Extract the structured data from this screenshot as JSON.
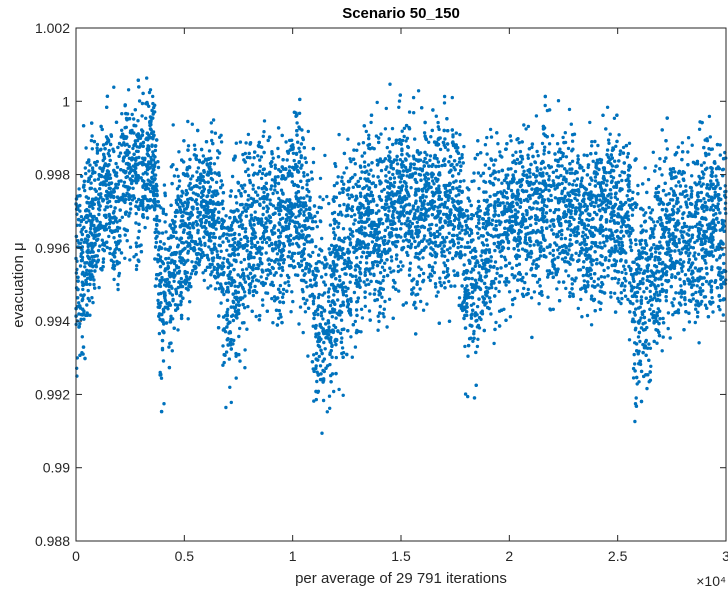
{
  "chart_data": {
    "type": "scatter",
    "title": "Scenario 50_150",
    "xlabel": "per average of 29 791 iterations",
    "ylabel": "evacuation μ",
    "xlim": [
      0,
      30000
    ],
    "ylim": [
      0.988,
      1.002
    ],
    "x_exponent_label": "×10⁴",
    "x_ticks": [
      0,
      5000,
      10000,
      15000,
      20000,
      25000,
      30000
    ],
    "x_tick_labels": [
      "0",
      "0.5",
      "1",
      "1.5",
      "2",
      "2.5",
      "3"
    ],
    "y_ticks": [
      0.988,
      0.99,
      0.992,
      0.994,
      0.996,
      0.998,
      1,
      1.002
    ],
    "y_tick_labels": [
      "0.988",
      "0.99",
      "0.992",
      "0.994",
      "0.996",
      "0.998",
      "1",
      "1.002"
    ],
    "grid": false,
    "marker_color": "#0072BD",
    "series": [
      {
        "x": [
          0,
          300,
          600,
          900,
          1200,
          1500,
          1800,
          2100,
          2400,
          2700,
          3000,
          3300,
          3600,
          3900,
          4200,
          4500,
          4800,
          5100,
          5400,
          5700,
          6000,
          6300,
          6600,
          6900,
          7200,
          7500,
          7800,
          8100,
          8400,
          8700,
          9000,
          9300,
          9600,
          9900,
          10200,
          10500,
          10800,
          11100,
          11400,
          11700,
          12000,
          12300,
          12600,
          12900,
          13200,
          13500,
          13800,
          14100,
          14400,
          14700,
          15000,
          15300,
          15600,
          15900,
          16200,
          16500,
          16800,
          17100,
          17400,
          17700,
          18000,
          18300,
          18600,
          18900,
          19200,
          19500,
          19800,
          20100,
          20400,
          20700,
          21000,
          21300,
          21600,
          21900,
          22200,
          22500,
          22800,
          23100,
          23400,
          23700,
          24000,
          24300,
          24600,
          24900,
          25200,
          25500,
          25800,
          26100,
          26400,
          26700,
          27000,
          27300,
          27600,
          27900,
          28200,
          28500,
          28800,
          29100,
          29400,
          29700,
          30000
        ],
        "y_max": [
          0.9995,
          0.9998,
          1.0,
          1.0002,
          1.0004,
          1.0006,
          1.0008,
          1.001,
          1.0011,
          1.001,
          1.0012,
          1.0013,
          1.0011,
          0.999,
          0.9992,
          0.9995,
          0.9997,
          0.9999,
          1.0,
          1.0002,
          1.0001,
          1.0003,
          1.0004,
          0.9995,
          0.9996,
          0.9998,
          0.9999,
          0.9998,
          1.0,
          1.0002,
          1.0003,
          1.0004,
          1.0005,
          1.0006,
          1.0006,
          1.0004,
          1.0002,
          0.999,
          0.9989,
          0.9992,
          0.9995,
          0.9997,
          0.9999,
          1.0,
          1.0002,
          1.0003,
          1.0005,
          1.0005,
          1.0006,
          1.0006,
          1.0007,
          1.0006,
          1.0007,
          1.0008,
          1.0007,
          1.0006,
          1.0007,
          1.0008,
          1.0007,
          1.0004,
          0.9994,
          0.9996,
          0.9998,
          1.0,
          1.0001,
          1.0002,
          1.0003,
          1.0004,
          1.0005,
          1.0005,
          1.0004,
          1.0005,
          1.0006,
          1.0005,
          1.0004,
          1.0005,
          1.0006,
          1.0005,
          1.0004,
          1.0003,
          1.0004,
          1.0005,
          1.0004,
          1.0003,
          1.0004,
          1.0004,
          0.9993,
          0.9992,
          0.9995,
          0.9997,
          0.9999,
          1.0,
          1.0001,
          1.0002,
          1.0003,
          1.0003,
          1.0002,
          1.0003,
          1.0002,
          1.0001,
          1.0
        ],
        "y_min": [
          0.991,
          0.992,
          0.993,
          0.9935,
          0.994,
          0.9945,
          0.993,
          0.994,
          0.995,
          0.9945,
          0.995,
          0.9955,
          0.9955,
          0.9901,
          0.991,
          0.992,
          0.9925,
          0.993,
          0.9935,
          0.994,
          0.994,
          0.9935,
          0.993,
          0.9903,
          0.991,
          0.9915,
          0.992,
          0.9925,
          0.993,
          0.9935,
          0.993,
          0.9925,
          0.993,
          0.9935,
          0.994,
          0.993,
          0.992,
          0.9897,
          0.9899,
          0.9905,
          0.991,
          0.9915,
          0.992,
          0.9925,
          0.993,
          0.9935,
          0.993,
          0.9925,
          0.993,
          0.9935,
          0.994,
          0.9935,
          0.993,
          0.9935,
          0.994,
          0.9935,
          0.993,
          0.9935,
          0.994,
          0.9935,
          0.9909,
          0.9912,
          0.9918,
          0.9922,
          0.9925,
          0.993,
          0.9935,
          0.9938,
          0.9935,
          0.993,
          0.9933,
          0.9936,
          0.9938,
          0.9935,
          0.993,
          0.9932,
          0.9935,
          0.9937,
          0.9934,
          0.993,
          0.9933,
          0.9935,
          0.9936,
          0.9933,
          0.993,
          0.9935,
          0.9902,
          0.9905,
          0.991,
          0.9915,
          0.992,
          0.9925,
          0.9928,
          0.993,
          0.9925,
          0.992,
          0.9925,
          0.993,
          0.9932,
          0.9928,
          0.9925
        ]
      }
    ]
  }
}
